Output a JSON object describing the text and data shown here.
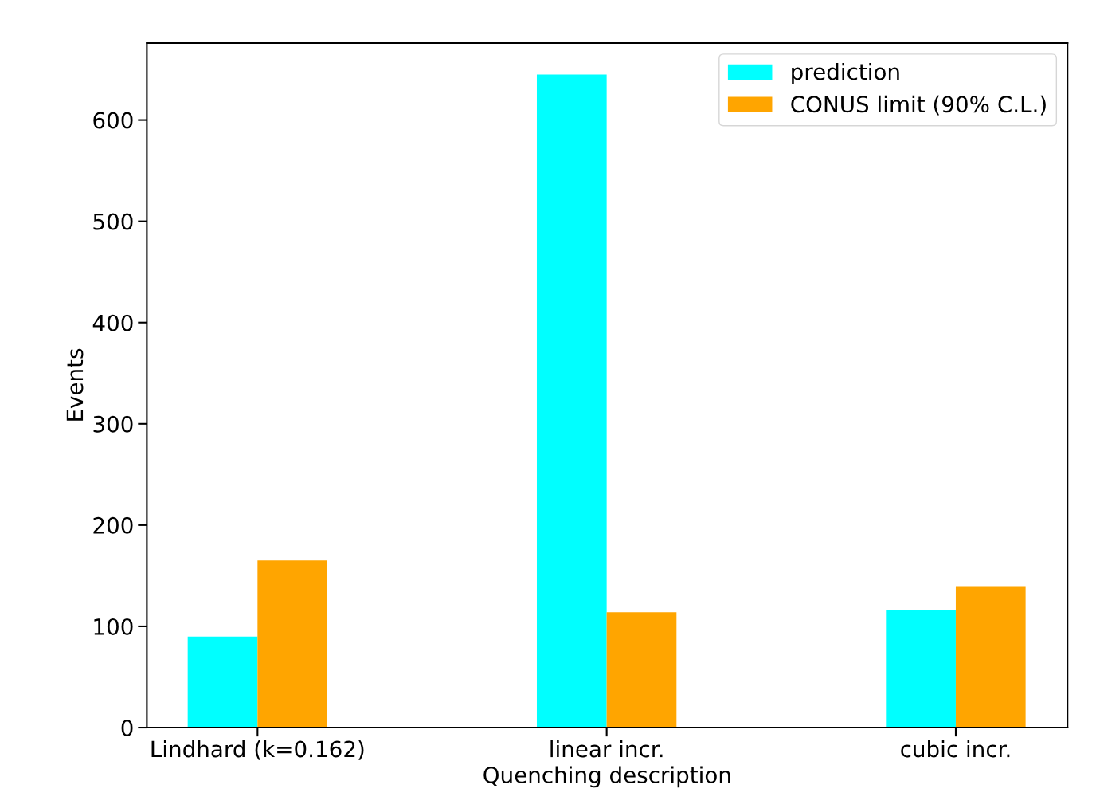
{
  "chart_data": {
    "type": "bar",
    "xlabel": "Quenching description",
    "ylabel": "Events",
    "categories": [
      "Lindhard (k=0.162)",
      "linear incr.",
      "cubic incr."
    ],
    "series": [
      {
        "name": "prediction",
        "color": "#00ffff",
        "values": [
          90,
          645,
          116
        ]
      },
      {
        "name": "CONUS limit (90% C.L.)",
        "color": "#ffa500",
        "values": [
          165,
          114,
          139
        ]
      }
    ],
    "ylim": [
      0,
      676
    ],
    "yticks": [
      0,
      100,
      200,
      300,
      400,
      500,
      600
    ],
    "grid": false,
    "legend": "top right"
  }
}
